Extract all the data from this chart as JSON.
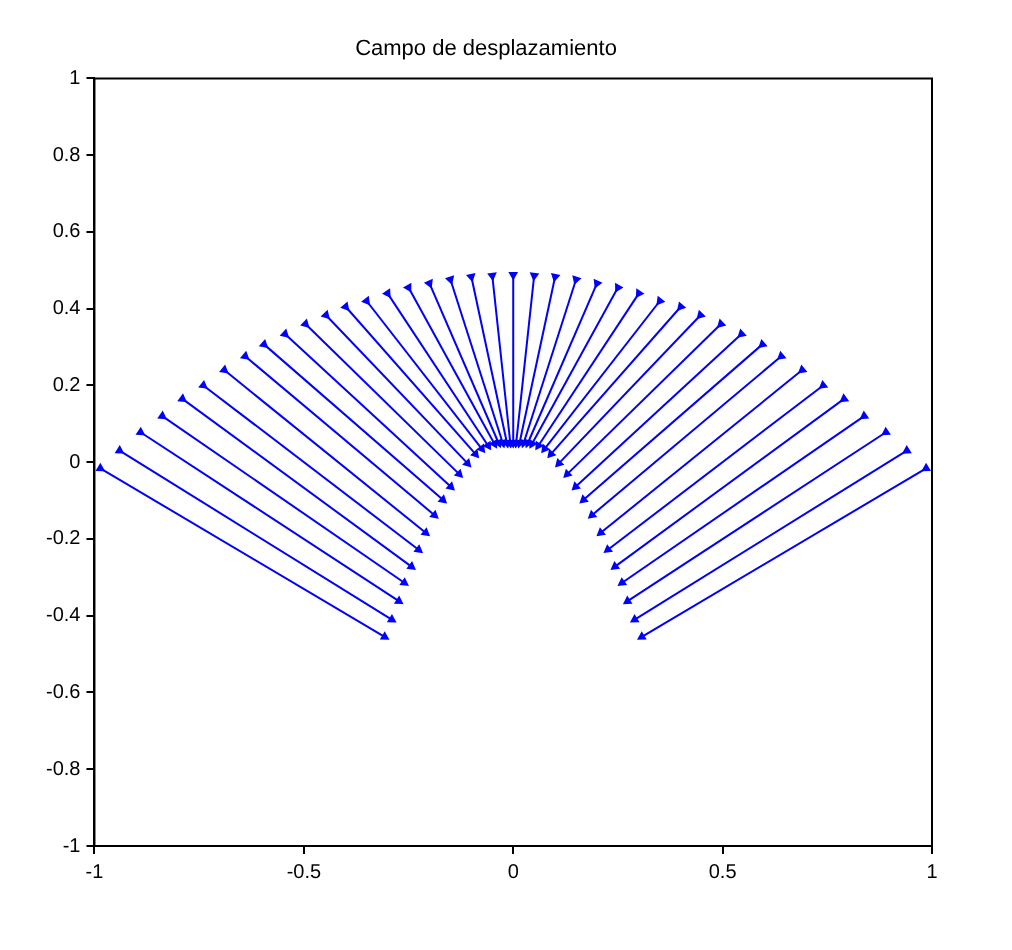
{
  "chart_data": {
    "type": "line",
    "title": "Campo de desplazamiento",
    "xlim": [
      -1,
      1
    ],
    "ylim": [
      -1,
      1
    ],
    "xticks": [
      -1,
      -0.5,
      0,
      0.5,
      1
    ],
    "yticks": [
      -1,
      -0.8,
      -0.6,
      -0.4,
      -0.2,
      0,
      0.2,
      0.4,
      0.6,
      0.8,
      1
    ],
    "grid": false,
    "legend": false,
    "marker": "triangle",
    "line_style": "solid",
    "series": [
      {
        "color": "#0000ff",
        "x": [
          -0.986,
          -0.307
        ],
        "values": [
          -0.016,
          -0.455
        ]
      },
      {
        "color": "#0000ff",
        "x": [
          -0.94,
          -0.29
        ],
        "values": [
          0.03,
          -0.41
        ]
      },
      {
        "color": "#0000ff",
        "x": [
          -0.89,
          -0.273
        ],
        "values": [
          0.078,
          -0.362
        ]
      },
      {
        "color": "#0000ff",
        "x": [
          -0.838,
          -0.26
        ],
        "values": [
          0.12,
          -0.314
        ]
      },
      {
        "color": "#0000ff",
        "x": [
          -0.79,
          -0.243
        ],
        "values": [
          0.165,
          -0.272
        ]
      },
      {
        "color": "#0000ff",
        "x": [
          -0.74,
          -0.226
        ],
        "values": [
          0.2,
          -0.228
        ]
      },
      {
        "color": "#0000ff",
        "x": [
          -0.69,
          -0.209
        ],
        "values": [
          0.24,
          -0.184
        ]
      },
      {
        "color": "#0000ff",
        "x": [
          -0.64,
          -0.188
        ],
        "values": [
          0.276,
          -0.138
        ]
      },
      {
        "color": "#0000ff",
        "x": [
          -0.595,
          -0.168
        ],
        "values": [
          0.307,
          -0.098
        ]
      },
      {
        "color": "#0000ff",
        "x": [
          -0.545,
          -0.149
        ],
        "values": [
          0.334,
          -0.064
        ]
      },
      {
        "color": "#0000ff",
        "x": [
          -0.496,
          -0.129
        ],
        "values": [
          0.36,
          -0.031
        ]
      },
      {
        "color": "#0000ff",
        "x": [
          -0.447,
          -0.109
        ],
        "values": [
          0.383,
          -0.003
        ]
      },
      {
        "color": "#0000ff",
        "x": [
          -0.4,
          -0.09
        ],
        "values": [
          0.405,
          0.021
        ]
      },
      {
        "color": "#0000ff",
        "x": [
          -0.35,
          -0.075
        ],
        "values": [
          0.42,
          0.035
        ]
      },
      {
        "color": "#0000ff",
        "x": [
          -0.3,
          -0.06
        ],
        "values": [
          0.44,
          0.043
        ]
      },
      {
        "color": "#0000ff",
        "x": [
          -0.25,
          -0.045
        ],
        "values": [
          0.455,
          0.048
        ]
      },
      {
        "color": "#0000ff",
        "x": [
          -0.2,
          -0.035
        ],
        "values": [
          0.466,
          0.05
        ]
      },
      {
        "color": "#0000ff",
        "x": [
          -0.15,
          -0.025
        ],
        "values": [
          0.476,
          0.05
        ]
      },
      {
        "color": "#0000ff",
        "x": [
          -0.1,
          -0.015
        ],
        "values": [
          0.483,
          0.05
        ]
      },
      {
        "color": "#0000ff",
        "x": [
          -0.05,
          -0.007
        ],
        "values": [
          0.486,
          0.05
        ]
      },
      {
        "color": "#0000ff",
        "x": [
          0,
          0
        ],
        "values": [
          0.488,
          0.05
        ]
      },
      {
        "color": "#0000ff",
        "x": [
          0.05,
          0.007
        ],
        "values": [
          0.486,
          0.05
        ]
      },
      {
        "color": "#0000ff",
        "x": [
          0.1,
          0.015
        ],
        "values": [
          0.483,
          0.05
        ]
      },
      {
        "color": "#0000ff",
        "x": [
          0.15,
          0.025
        ],
        "values": [
          0.476,
          0.05
        ]
      },
      {
        "color": "#0000ff",
        "x": [
          0.2,
          0.035
        ],
        "values": [
          0.466,
          0.05
        ]
      },
      {
        "color": "#0000ff",
        "x": [
          0.25,
          0.045
        ],
        "values": [
          0.455,
          0.048
        ]
      },
      {
        "color": "#0000ff",
        "x": [
          0.3,
          0.06
        ],
        "values": [
          0.44,
          0.043
        ]
      },
      {
        "color": "#0000ff",
        "x": [
          0.35,
          0.075
        ],
        "values": [
          0.42,
          0.035
        ]
      },
      {
        "color": "#0000ff",
        "x": [
          0.4,
          0.09
        ],
        "values": [
          0.405,
          0.021
        ]
      },
      {
        "color": "#0000ff",
        "x": [
          0.447,
          0.109
        ],
        "values": [
          0.383,
          -0.003
        ]
      },
      {
        "color": "#0000ff",
        "x": [
          0.496,
          0.129
        ],
        "values": [
          0.36,
          -0.031
        ]
      },
      {
        "color": "#0000ff",
        "x": [
          0.545,
          0.149
        ],
        "values": [
          0.334,
          -0.064
        ]
      },
      {
        "color": "#0000ff",
        "x": [
          0.595,
          0.168
        ],
        "values": [
          0.307,
          -0.098
        ]
      },
      {
        "color": "#0000ff",
        "x": [
          0.64,
          0.188
        ],
        "values": [
          0.276,
          -0.138
        ]
      },
      {
        "color": "#0000ff",
        "x": [
          0.69,
          0.209
        ],
        "values": [
          0.24,
          -0.184
        ]
      },
      {
        "color": "#0000ff",
        "x": [
          0.74,
          0.226
        ],
        "values": [
          0.2,
          -0.228
        ]
      },
      {
        "color": "#0000ff",
        "x": [
          0.79,
          0.243
        ],
        "values": [
          0.165,
          -0.272
        ]
      },
      {
        "color": "#0000ff",
        "x": [
          0.838,
          0.26
        ],
        "values": [
          0.12,
          -0.314
        ]
      },
      {
        "color": "#0000ff",
        "x": [
          0.89,
          0.273
        ],
        "values": [
          0.078,
          -0.362
        ]
      },
      {
        "color": "#0000ff",
        "x": [
          0.94,
          0.29
        ],
        "values": [
          0.03,
          -0.41
        ]
      },
      {
        "color": "#0000ff",
        "x": [
          0.986,
          0.307
        ],
        "values": [
          -0.016,
          -0.455
        ]
      }
    ]
  }
}
